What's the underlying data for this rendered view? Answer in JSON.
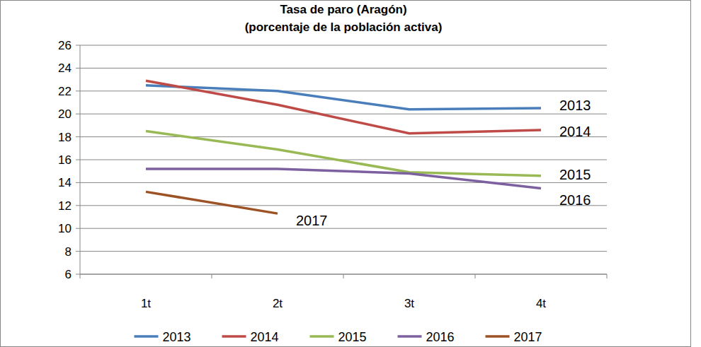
{
  "chart_data": {
    "type": "line",
    "title": "Tasa de paro (Aragón)",
    "subtitle": "(porcentaje de la población activa)",
    "categories": [
      "1t",
      "2t",
      "3t",
      "4t"
    ],
    "series": [
      {
        "name": "2013",
        "color": "#4a7ebb",
        "values": [
          22.5,
          22.0,
          20.4,
          20.5
        ]
      },
      {
        "name": "2014",
        "color": "#be4b48",
        "values": [
          22.9,
          20.8,
          18.3,
          18.6
        ]
      },
      {
        "name": "2015",
        "color": "#98b954",
        "values": [
          18.5,
          16.9,
          14.9,
          14.6
        ]
      },
      {
        "name": "2016",
        "color": "#7d60a0",
        "values": [
          15.2,
          15.2,
          14.8,
          13.5
        ]
      },
      {
        "name": "2017",
        "color": "#9c5224",
        "values": [
          13.2,
          11.3,
          null,
          null
        ]
      }
    ],
    "ylim": [
      6,
      26
    ],
    "yticks": [
      6,
      8,
      10,
      12,
      14,
      16,
      18,
      20,
      22,
      24,
      26
    ],
    "grid": true,
    "legend": "bottom"
  }
}
